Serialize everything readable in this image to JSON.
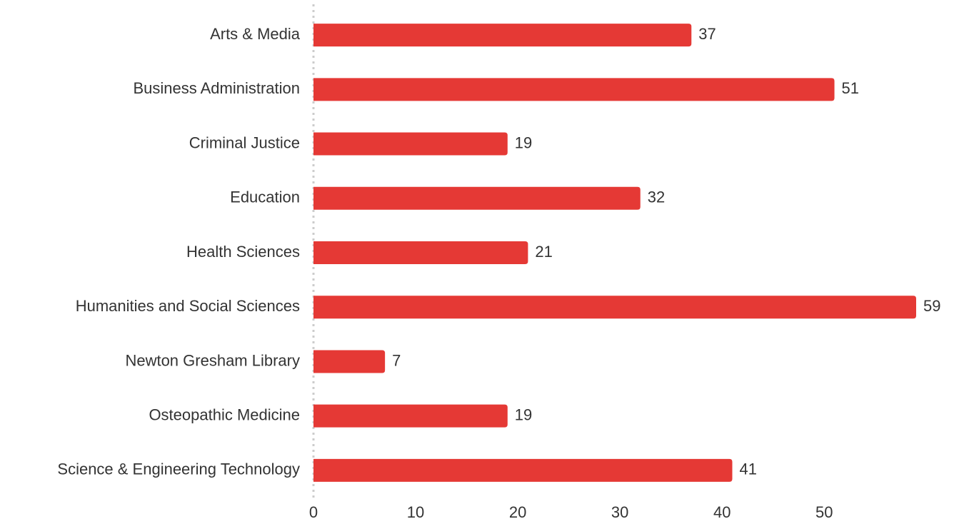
{
  "chart_data": {
    "type": "bar",
    "orientation": "horizontal",
    "categories": [
      "Arts & Media",
      "Business Administration",
      "Criminal Justice",
      "Education",
      "Health Sciences",
      "Humanities and Social Sciences",
      "Newton Gresham Library",
      "Osteopathic Medicine",
      "Science & Engineering Technology"
    ],
    "values": [
      37,
      51,
      19,
      32,
      21,
      59,
      7,
      19,
      41
    ],
    "color": "#e53935",
    "xlim": [
      0,
      59
    ],
    "xticks": [
      0,
      10,
      20,
      30,
      40,
      50
    ],
    "grid": false
  }
}
